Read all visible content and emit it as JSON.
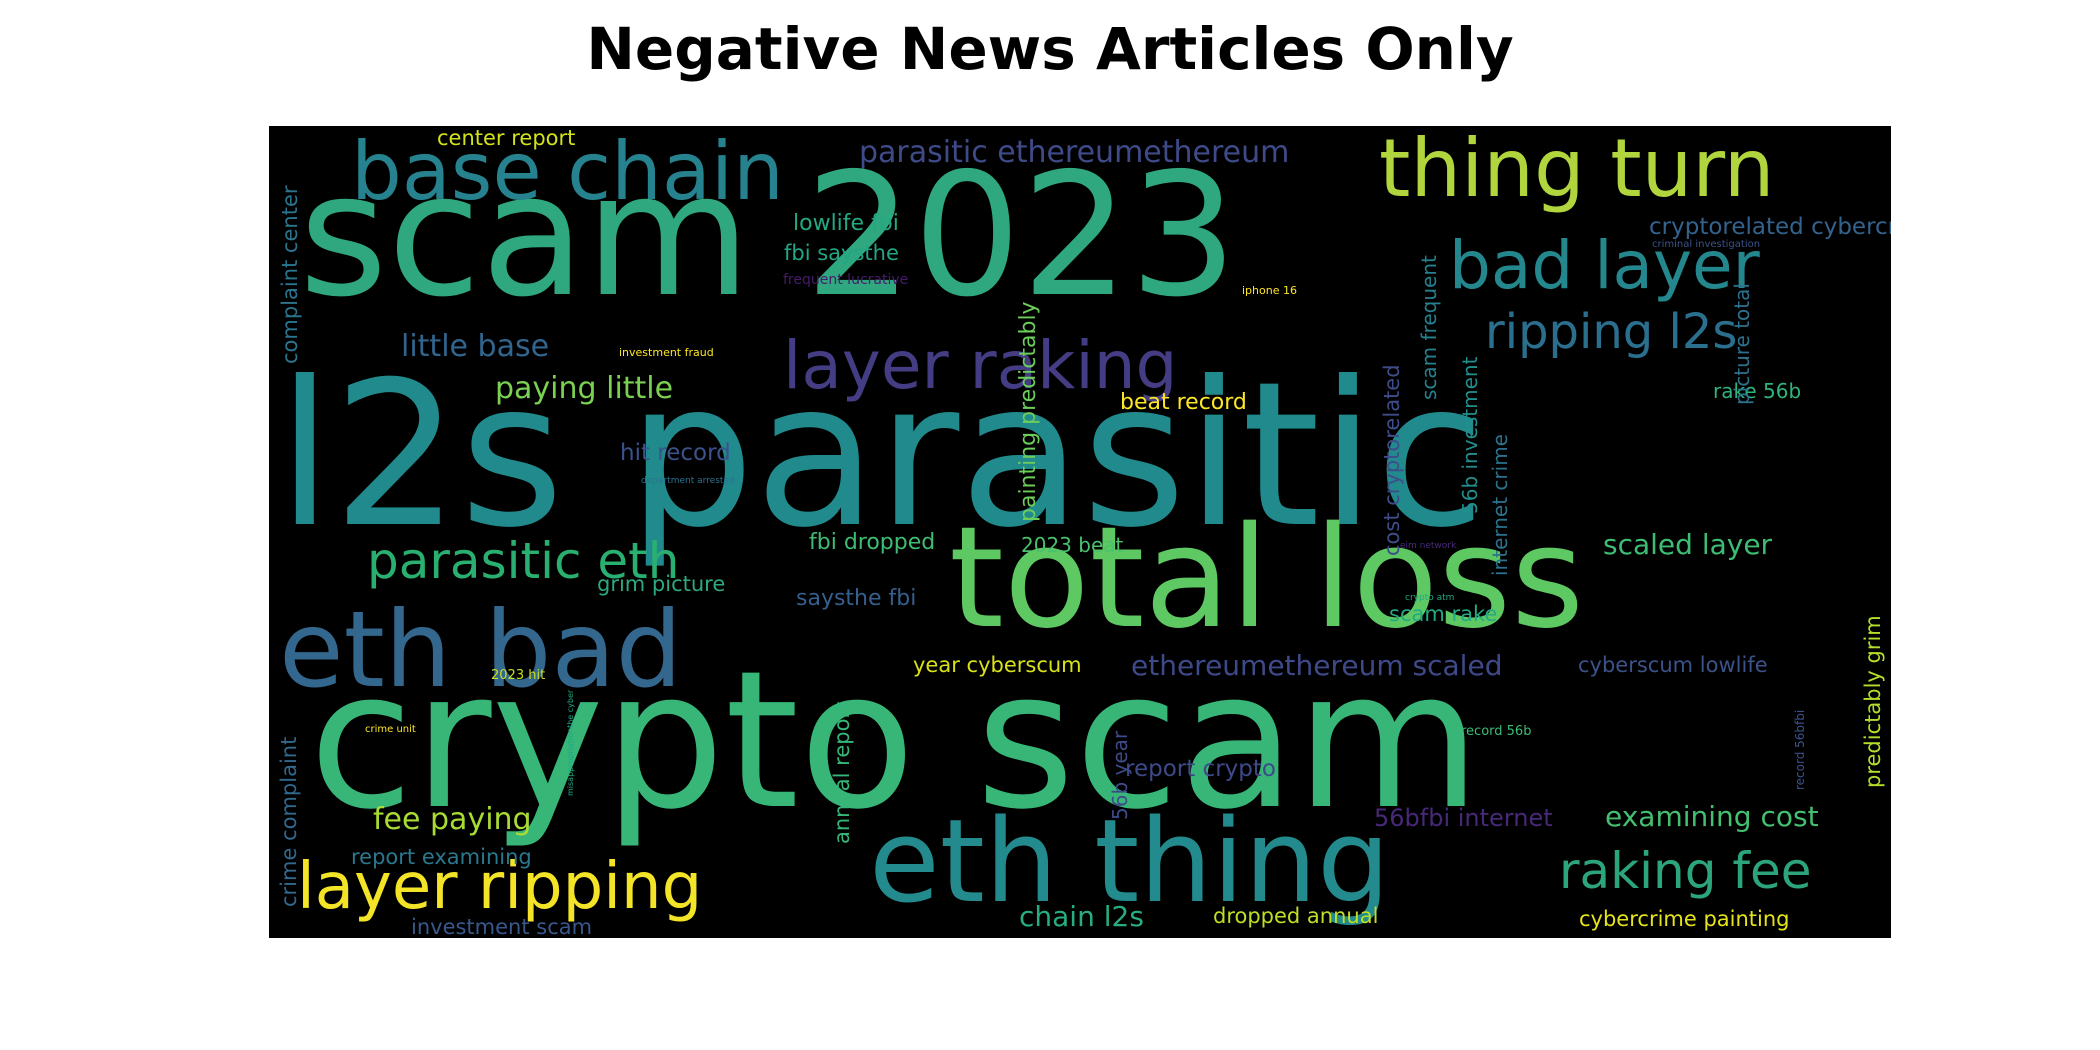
{
  "figure": {
    "title": "Negative News Articles Only"
  },
  "wordcloud": {
    "background": "#000000",
    "words": [
      {
        "text": "scam 2023",
        "color": "#2fa77f"
      },
      {
        "text": "l2s parasitic",
        "color": "#218a8d"
      },
      {
        "text": "crypto scam",
        "color": "#37b678"
      },
      {
        "text": "total loss",
        "color": "#5ec962"
      },
      {
        "text": "eth bad",
        "color": "#33678d"
      },
      {
        "text": "eth thing",
        "color": "#238a8d"
      },
      {
        "text": "base chain",
        "color": "#26828e"
      },
      {
        "text": "thing turn",
        "color": "#b1d63d"
      },
      {
        "text": "layer raking",
        "color": "#443d83"
      },
      {
        "text": "bad layer",
        "color": "#24878e"
      },
      {
        "text": "ripping l2s",
        "color": "#2b6f8e"
      },
      {
        "text": "layer ripping",
        "color": "#f3e427"
      },
      {
        "text": "parasitic eth",
        "color": "#29b070"
      },
      {
        "text": "raking fee",
        "color": "#2da57c"
      },
      {
        "text": "parasitic ethereumethereum",
        "color": "#3f4a89"
      },
      {
        "text": "cryptorelated cybercrime",
        "color": "#33638d"
      },
      {
        "text": "center report",
        "color": "#d2e21b"
      },
      {
        "text": "complaint center",
        "color": "#2b758e"
      },
      {
        "text": "lowlife fbi",
        "color": "#23a883"
      },
      {
        "text": "fbi saysthe",
        "color": "#22a785"
      },
      {
        "text": "frequent lucrative",
        "color": "#481a6c"
      },
      {
        "text": "little base",
        "color": "#31658e"
      },
      {
        "text": "investment fraud",
        "color": "#fde725"
      },
      {
        "text": "paying little",
        "color": "#7ad151"
      },
      {
        "text": "hit record",
        "color": "#3b528b"
      },
      {
        "text": "department arrested",
        "color": "#2c728e"
      },
      {
        "text": "iphone 16",
        "color": "#fde725"
      },
      {
        "text": "criminal investigation",
        "color": "#3b528b"
      },
      {
        "text": "painting predictably",
        "color": "#6ccd5a"
      },
      {
        "text": "beat record",
        "color": "#fde725"
      },
      {
        "text": "cost cryptorelated",
        "color": "#3e4c8a"
      },
      {
        "text": "scam frequent",
        "color": "#26818e"
      },
      {
        "text": "56b investment",
        "color": "#218f8d"
      },
      {
        "text": "internet crime",
        "color": "#2c728e"
      },
      {
        "text": "rake 56b",
        "color": "#2fb47c"
      },
      {
        "text": "picture total",
        "color": "#2d718e"
      },
      {
        "text": "fbi dropped",
        "color": "#3fbc73"
      },
      {
        "text": "2023 beat",
        "color": "#4ac16d"
      },
      {
        "text": "scaled layer",
        "color": "#3dbc74"
      },
      {
        "text": "grim picture",
        "color": "#2ea97f"
      },
      {
        "text": "saysthe fbi",
        "color": "#355f8d"
      },
      {
        "text": "scam rake",
        "color": "#23a983"
      },
      {
        "text": "eim network",
        "color": "#472a7a"
      },
      {
        "text": "crypto atm",
        "color": "#22a884"
      },
      {
        "text": "ethereumethereum scaled",
        "color": "#3e4989"
      },
      {
        "text": "cyberscum lowlife",
        "color": "#3b528b"
      },
      {
        "text": "year cyberscum",
        "color": "#d8e219"
      },
      {
        "text": "2023 hit",
        "color": "#c8e020"
      },
      {
        "text": "misappropriationthe cyber",
        "color": "#22a884"
      },
      {
        "text": "crime unit",
        "color": "#fde725"
      },
      {
        "text": "crime complaint",
        "color": "#31688e"
      },
      {
        "text": "annual report",
        "color": "#35b779"
      },
      {
        "text": "56b year",
        "color": "#3e4a89"
      },
      {
        "text": "report crypto",
        "color": "#3e4989"
      },
      {
        "text": "record 56b",
        "color": "#3dbc74"
      },
      {
        "text": "record 56bfbi",
        "color": "#3b528b"
      },
      {
        "text": "predictably grim",
        "color": "#b5de2b"
      },
      {
        "text": "fee paying",
        "color": "#a8db34"
      },
      {
        "text": "56bfbi internet",
        "color": "#482878"
      },
      {
        "text": "examining cost",
        "color": "#44bf70"
      },
      {
        "text": "report examining",
        "color": "#2a788e"
      },
      {
        "text": "investment scam",
        "color": "#38588c"
      },
      {
        "text": "chain l2s",
        "color": "#27ad81"
      },
      {
        "text": "dropped annual",
        "color": "#bddf26"
      },
      {
        "text": "cybercrime painting",
        "color": "#e5e419"
      }
    ]
  }
}
